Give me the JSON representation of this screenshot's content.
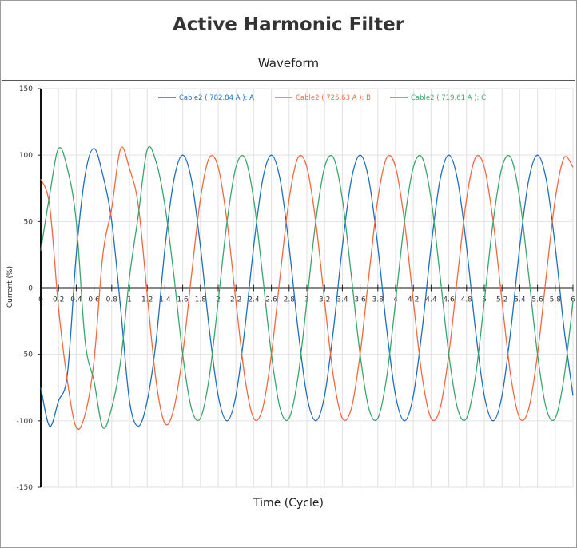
{
  "header": {
    "title": "Active Harmonic Filter",
    "subtitle": "Waveform"
  },
  "chart_data": {
    "type": "line",
    "title": "Waveform",
    "xlabel": "Time (Cycle)",
    "ylabel": "Current (%)",
    "xlim": [
      0,
      6
    ],
    "ylim": [
      -150,
      150
    ],
    "x_step": 0.1,
    "x_ticks": [
      "0",
      "0.2",
      "0.4",
      "0.6",
      "0.8",
      "1",
      "1.2",
      "1.4",
      "1.6",
      "1.8",
      "2",
      "2.2",
      "2.4",
      "2.6",
      "2.8",
      "3",
      "3.2",
      "3.4",
      "3.6",
      "3.8",
      "4",
      "4.2",
      "4.4",
      "4.6",
      "4.8",
      "5",
      "5.2",
      "5.4",
      "5.6",
      "5.8",
      "6"
    ],
    "y_ticks": [
      "150",
      "100",
      "50",
      "0",
      "-50",
      "-100",
      "-150"
    ],
    "grid": true,
    "legend_position": "top-center",
    "series": [
      {
        "name": "Cable2 ( 782.84 A ): A",
        "color": "#1f6fbf",
        "values": [
          -75,
          -104,
          -85,
          -65,
          25,
          85,
          105,
          85,
          50,
          -15,
          -85,
          -104,
          -85,
          -40,
          30,
          81,
          100,
          81,
          31,
          -31,
          -81,
          -100,
          -81,
          -31,
          31,
          81,
          100,
          81,
          31,
          -31,
          -81,
          -100,
          -81,
          -31,
          31,
          81,
          100,
          81,
          31,
          -31,
          -81,
          -100,
          -81,
          -31,
          31,
          81,
          100,
          81,
          31,
          -31,
          -81,
          -100,
          -81,
          -31,
          31,
          81,
          100,
          81,
          31,
          -31,
          -81
        ]
      },
      {
        "name": "Cable2 ( 725.63 A ): B",
        "color": "#f2693e",
        "values": [
          82,
          62,
          -15,
          -70,
          -105,
          -95,
          -55,
          25,
          60,
          105,
          90,
          62,
          -5,
          -70,
          -102,
          -91,
          -50,
          10,
          67,
          98,
          91,
          50,
          -10,
          -67,
          -98,
          -91,
          -50,
          10,
          67,
          98,
          91,
          50,
          -10,
          -67,
          -98,
          -91,
          -50,
          10,
          67,
          98,
          91,
          50,
          -10,
          -67,
          -98,
          -91,
          -50,
          10,
          67,
          98,
          91,
          50,
          -10,
          -67,
          -98,
          -91,
          -50,
          10,
          67,
          98,
          91
        ]
      },
      {
        "name": "Cable2 ( 719.61 A ): C",
        "color": "#3aa66a",
        "values": [
          28,
          70,
          105,
          90,
          50,
          -40,
          -70,
          -105,
          -90,
          -55,
          8,
          55,
          104,
          95,
          62,
          10,
          -50,
          -91,
          -98,
          -67,
          -10,
          50,
          91,
          98,
          67,
          10,
          -50,
          -91,
          -98,
          -67,
          -10,
          50,
          91,
          98,
          67,
          10,
          -50,
          -91,
          -98,
          -67,
          -10,
          50,
          91,
          98,
          67,
          10,
          -50,
          -91,
          -98,
          -67,
          -10,
          50,
          91,
          98,
          67,
          10,
          -50,
          -91,
          -98,
          -67,
          -10
        ]
      }
    ]
  }
}
